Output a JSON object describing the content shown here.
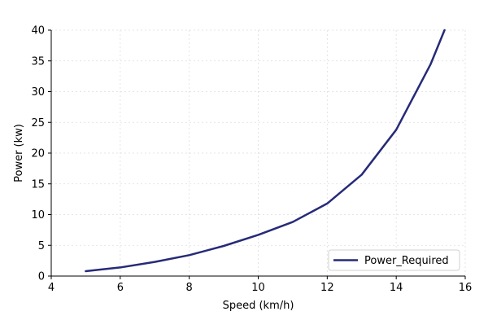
{
  "chart_data": {
    "type": "line",
    "title": "",
    "xlabel": "Speed (km/h)",
    "ylabel": "Power (kw)",
    "xlim": [
      4,
      16
    ],
    "ylim": [
      0,
      40
    ],
    "xticks": [
      4,
      6,
      8,
      10,
      12,
      14,
      16
    ],
    "yticks": [
      0,
      5,
      10,
      15,
      20,
      25,
      30,
      35,
      40
    ],
    "grid": true,
    "legend_position": "bottom-right",
    "series": [
      {
        "name": "Power_Required",
        "color": "#262a78",
        "x": [
          5,
          6,
          7,
          8,
          9,
          10,
          11,
          12,
          13,
          14,
          15,
          15.4
        ],
        "y": [
          0.8,
          1.4,
          2.3,
          3.4,
          4.9,
          6.7,
          8.8,
          11.8,
          16.5,
          23.8,
          34.5,
          40
        ]
      }
    ]
  }
}
